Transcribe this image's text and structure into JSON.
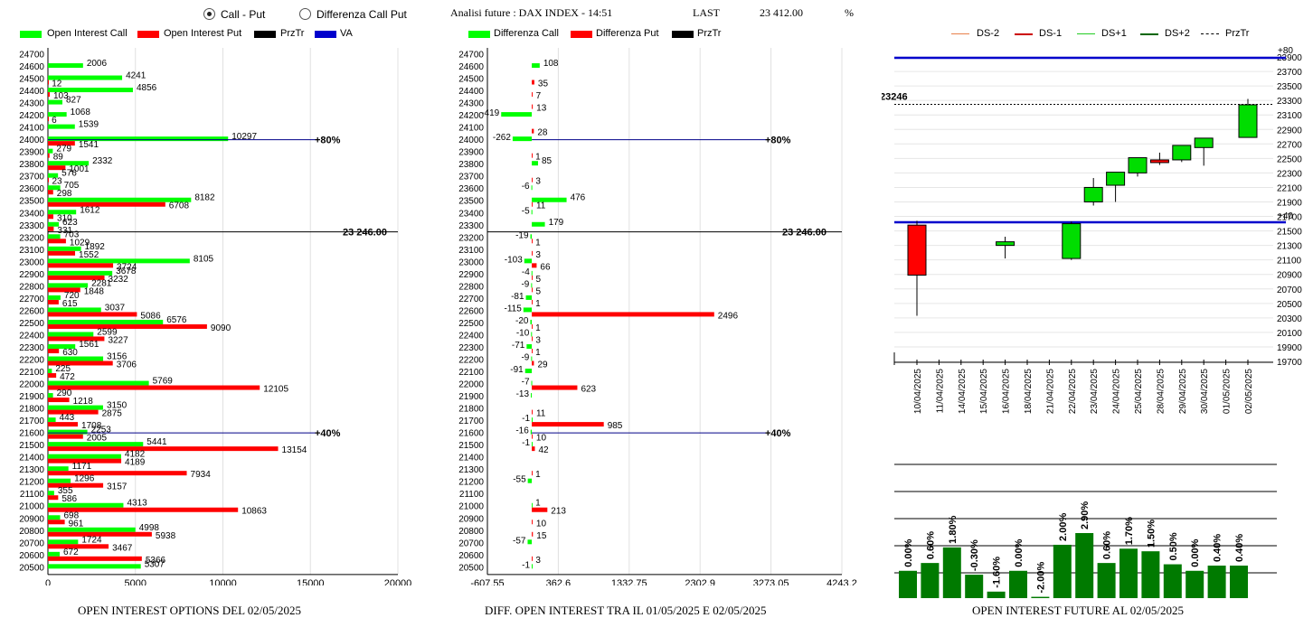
{
  "header": {
    "radio_call_put": "Call - Put",
    "radio_diff": "Differenza Call Put",
    "selected": "Call - Put",
    "title": "Analisi future : DAX INDEX - 14:51",
    "last_label": "LAST",
    "last_value": "23 412.00",
    "pct_label": "%"
  },
  "colors": {
    "green": "#00ff00",
    "red": "#ff0000",
    "black": "#000000",
    "blue": "#0000cc",
    "darkgreen": "#007a00"
  },
  "panel1": {
    "legend": [
      "Open Interest Call",
      "Open Interest Put",
      "PrzTr",
      "VA"
    ],
    "caption": "OPEN INTEREST OPTIONS DEL 02/05/2025",
    "marker_80": "+80%",
    "marker_40": "+40%",
    "prztr_label": "23 246.00"
  },
  "panel2": {
    "legend": [
      "Differenza Call",
      "Differenza Put",
      "PrzTr"
    ],
    "caption": "DIFF. OPEN INTEREST TRA IL 01/05/2025 E 02/05/2025",
    "marker_80": "+80%",
    "marker_40": "+40%",
    "prztr_label": "23 246.00"
  },
  "panel3": {
    "legend": [
      "DS-2",
      "DS-1",
      "DS+1",
      "DS+2",
      "PrzTr"
    ],
    "right_top": "+80",
    "right_mid": "+40",
    "prztr_label": "23246"
  },
  "panel4": {
    "caption": "OPEN INTEREST FUTURE AL 02/05/2025"
  },
  "chart_data": [
    {
      "type": "bar",
      "title": "OPEN INTEREST OPTIONS DEL 02/05/2025",
      "orientation": "horizontal",
      "strikes": [
        24700,
        24600,
        24500,
        24400,
        24300,
        24200,
        24100,
        24000,
        23900,
        23800,
        23700,
        23600,
        23500,
        23400,
        23300,
        23200,
        23100,
        23000,
        22900,
        22800,
        22700,
        22600,
        22500,
        22400,
        22300,
        22200,
        22100,
        22000,
        21900,
        21800,
        21700,
        21600,
        21500,
        21400,
        21300,
        21200,
        21100,
        21000,
        20900,
        20800,
        20700,
        20600,
        20500
      ],
      "series": [
        {
          "name": "Open Interest Call",
          "values": [
            null,
            2006,
            4241,
            4856,
            827,
            1068,
            1539,
            10297,
            279,
            2332,
            576,
            705,
            8182,
            1612,
            623,
            703,
            1892,
            8105,
            3678,
            2281,
            720,
            3037,
            6576,
            2599,
            1561,
            3156,
            225,
            5769,
            290,
            3150,
            443,
            2253,
            5441,
            4182,
            1171,
            1296,
            355,
            4313,
            698,
            4998,
            1724,
            672,
            5307
          ]
        },
        {
          "name": "Open Interest Put",
          "values": [
            null,
            null,
            12,
            103,
            null,
            6,
            null,
            1541,
            89,
            1001,
            23,
            298,
            6708,
            310,
            331,
            1029,
            1552,
            3724,
            3232,
            1848,
            615,
            5086,
            9090,
            3227,
            630,
            3706,
            472,
            12105,
            1218,
            2875,
            1708,
            2005,
            13154,
            4189,
            7934,
            3157,
            586,
            10863,
            961,
            5938,
            3467,
            5366,
            null
          ]
        }
      ],
      "xlim": [
        0,
        20000
      ],
      "xticks": [
        0,
        5000,
        10000,
        15000,
        20000
      ],
      "prztr": 23246
    },
    {
      "type": "bar",
      "title": "DIFF. OPEN INTEREST TRA IL 01/05/2025 E 02/05/2025",
      "orientation": "horizontal",
      "strikes": [
        24700,
        24600,
        24500,
        24400,
        24300,
        24200,
        24100,
        24000,
        23900,
        23800,
        23700,
        23600,
        23500,
        23400,
        23300,
        23200,
        23100,
        23000,
        22900,
        22800,
        22700,
        22600,
        22500,
        22400,
        22300,
        22200,
        22100,
        22000,
        21900,
        21800,
        21700,
        21600,
        21500,
        21400,
        21300,
        21200,
        21100,
        21000,
        20900,
        20800,
        20700,
        20600,
        20500
      ],
      "series": [
        {
          "name": "Differenza Call",
          "values": [
            null,
            108,
            null,
            null,
            null,
            -419,
            null,
            -262,
            null,
            85,
            null,
            -6,
            476,
            -5,
            179,
            -19,
            null,
            -103,
            -4,
            -9,
            -81,
            -115,
            -20,
            -10,
            -71,
            -9,
            -91,
            -7,
            -13,
            null,
            -1,
            -16,
            -1,
            null,
            null,
            -55,
            null,
            1,
            null,
            null,
            -57,
            null,
            -1
          ]
        },
        {
          "name": "Differenza Put",
          "values": [
            null,
            null,
            35,
            7,
            13,
            null,
            28,
            null,
            1,
            null,
            3,
            null,
            11,
            null,
            null,
            1,
            3,
            66,
            5,
            5,
            1,
            2496,
            1,
            3,
            1,
            29,
            null,
            623,
            null,
            11,
            985,
            10,
            42,
            null,
            1,
            null,
            null,
            213,
            10,
            15,
            null,
            3,
            null
          ]
        }
      ],
      "xlim": [
        -607.55,
        4243.2
      ],
      "xticks": [
        -607.55,
        362.6,
        1332.75,
        2302.9,
        3273.05,
        4243.2
      ],
      "prztr": 23246
    },
    {
      "type": "candlestick",
      "dates": [
        "10/04/2025",
        "11/04/2025",
        "14/04/2025",
        "15/04/2025",
        "16/04/2025",
        "18/04/2025",
        "21/04/2025",
        "22/04/2025",
        "23/04/2025",
        "24/04/2025",
        "25/04/2025",
        "28/04/2025",
        "29/04/2025",
        "30/04/2025",
        "01/05/2025",
        "02/05/2025"
      ],
      "candles": [
        {
          "date": "10/04/2025",
          "open": 21580,
          "close": 20890,
          "high": 21640,
          "low": 20330
        },
        {
          "date": "16/04/2025",
          "open": 21300,
          "close": 21350,
          "high": 21420,
          "low": 21120
        },
        {
          "date": "22/04/2025",
          "open": 21120,
          "close": 21600,
          "high": 21630,
          "low": 21100
        },
        {
          "date": "23/04/2025",
          "open": 21900,
          "close": 22100,
          "high": 22230,
          "low": 21850
        },
        {
          "date": "24/04/2025",
          "open": 22130,
          "close": 22310,
          "high": 22310,
          "low": 21900
        },
        {
          "date": "25/04/2025",
          "open": 22300,
          "close": 22510,
          "high": 22510,
          "low": 22250
        },
        {
          "date": "28/04/2025",
          "open": 22480,
          "close": 22460,
          "high": 22580,
          "low": 22410
        },
        {
          "date": "29/04/2025",
          "open": 22480,
          "close": 22680,
          "high": 22680,
          "low": 22450
        },
        {
          "date": "30/04/2025",
          "open": 22650,
          "close": 22780,
          "high": 22780,
          "low": 22400
        },
        {
          "date": "02/05/2025",
          "open": 22790,
          "close": 23240,
          "high": 23320,
          "low": 22790
        }
      ],
      "ylim": [
        19700,
        24000
      ],
      "yticks": [
        19700,
        19900,
        20100,
        20300,
        20500,
        20700,
        20900,
        21100,
        21300,
        21500,
        21700,
        21900,
        22100,
        22300,
        22500,
        22700,
        22900,
        23100,
        23300,
        23500,
        23700,
        23900
      ],
      "prztr": 23246
    },
    {
      "type": "bar",
      "title": "OPEN INTEREST FUTURE AL 02/05/2025",
      "values": [
        0.0,
        0.6,
        1.8,
        -0.3,
        -1.6,
        0.0,
        -2.0,
        2.0,
        2.9,
        0.6,
        1.7,
        1.5,
        0.5,
        0.0,
        0.4,
        0.4
      ],
      "labels": [
        "0.00%",
        "0.60%",
        "1.80%",
        "-0.30%",
        "-1.60%",
        "0.00%",
        "-2.00%",
        "2.00%",
        "2.90%",
        "0.60%",
        "1.70%",
        "1.50%",
        "0.50%",
        "0.00%",
        "0.40%",
        "0.40%"
      ]
    }
  ]
}
